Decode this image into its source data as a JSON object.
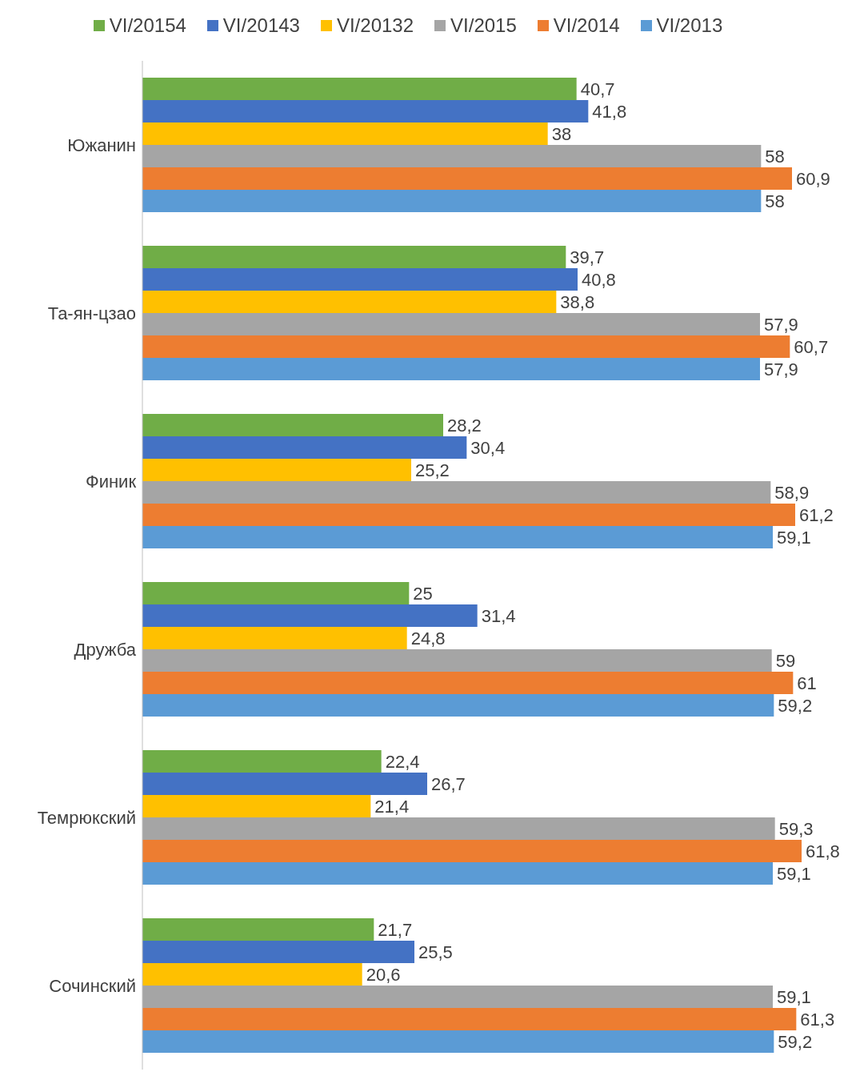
{
  "chart_data": {
    "type": "bar",
    "orientation": "horizontal",
    "categories": [
      "Южанин",
      "Та-ян-цзао",
      "Финик",
      "Дружба",
      "Темрюкский",
      "Сочинский"
    ],
    "series": [
      {
        "name": "VI/20154",
        "color": "#70ad47",
        "values": [
          40.7,
          39.7,
          28.2,
          25,
          22.4,
          21.7
        ],
        "value_labels": [
          "40,7",
          "39,7",
          "28,2",
          "25",
          "22,4",
          "21,7"
        ]
      },
      {
        "name": "VI/20143",
        "color": "#4472c4",
        "values": [
          41.8,
          40.8,
          30.4,
          31.4,
          26.7,
          25.5
        ],
        "value_labels": [
          "41,8",
          "40,8",
          "30,4",
          "31,4",
          "26,7",
          "25,5"
        ]
      },
      {
        "name": "VI/20132",
        "color": "#ffc000",
        "values": [
          38,
          38.8,
          25.2,
          24.8,
          21.4,
          20.6
        ],
        "value_labels": [
          "38",
          "38,8",
          "25,2",
          "24,8",
          "21,4",
          "20,6"
        ]
      },
      {
        "name": "VI/2015",
        "color": "#a5a5a5",
        "values": [
          58,
          57.9,
          58.9,
          59,
          59.3,
          59.1
        ],
        "value_labels": [
          "58",
          "57,9",
          "58,9",
          "59",
          "59,3",
          "59,1"
        ]
      },
      {
        "name": "VI/2014",
        "color": "#ed7d31",
        "values": [
          60.9,
          60.7,
          61.2,
          61,
          61.8,
          61.3
        ],
        "value_labels": [
          "60,9",
          "60,7",
          "61,2",
          "61",
          "61,8",
          "61,3"
        ]
      },
      {
        "name": "VI/2013",
        "color": "#5b9bd5",
        "values": [
          58,
          57.9,
          59.1,
          59.2,
          59.1,
          59.2
        ],
        "value_labels": [
          "58",
          "57,9",
          "59,1",
          "59,2",
          "59,1",
          "59,2"
        ]
      }
    ],
    "legend": "top"
  }
}
